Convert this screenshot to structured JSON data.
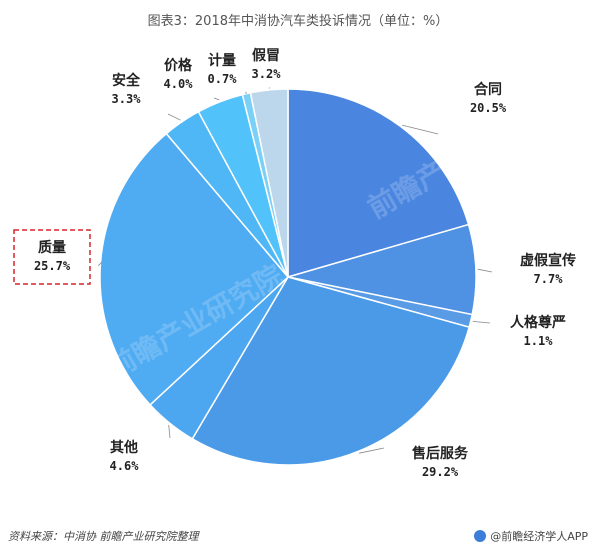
{
  "title": "图表3：2018年中消协汽车类投诉情况（单位：%）",
  "chart_data": {
    "type": "pie",
    "title": "图表3：2018年中消协汽车类投诉情况（单位：%）",
    "unit": "%",
    "slices": [
      {
        "label": "合同",
        "value": 20.5,
        "display": "20.5%",
        "color": "#4a86e0"
      },
      {
        "label": "虚假宣传",
        "value": 7.7,
        "display": "7.7%",
        "color": "#4f91e2"
      },
      {
        "label": "人格尊严",
        "value": 1.1,
        "display": "1.1%",
        "color": "#5a9be6"
      },
      {
        "label": "售后服务",
        "value": 29.2,
        "display": "29.2%",
        "color": "#4a9ae8"
      },
      {
        "label": "其他",
        "value": 4.6,
        "display": "4.6%",
        "color": "#4da6f0"
      },
      {
        "label": "质量",
        "value": 25.7,
        "display": "25.7%",
        "color": "#4fabf2"
      },
      {
        "label": "安全",
        "value": 3.3,
        "display": "3.3%",
        "color": "#4fb7f6"
      },
      {
        "label": "价格",
        "value": 4.0,
        "display": "4.0%",
        "color": "#52c2fa"
      },
      {
        "label": "计量",
        "value": 0.7,
        "display": "0.7%",
        "color": "#7ad0f6"
      },
      {
        "label": "假冒",
        "value": 3.2,
        "display": "3.2%",
        "color": "#bcd6ec"
      }
    ],
    "highlighted": "质量"
  },
  "watermark": "前瞻产业研究院",
  "footer": {
    "source": "资料来源：中消协  前瞻产业研究院整理",
    "brand": "@前瞻经济学人APP"
  }
}
